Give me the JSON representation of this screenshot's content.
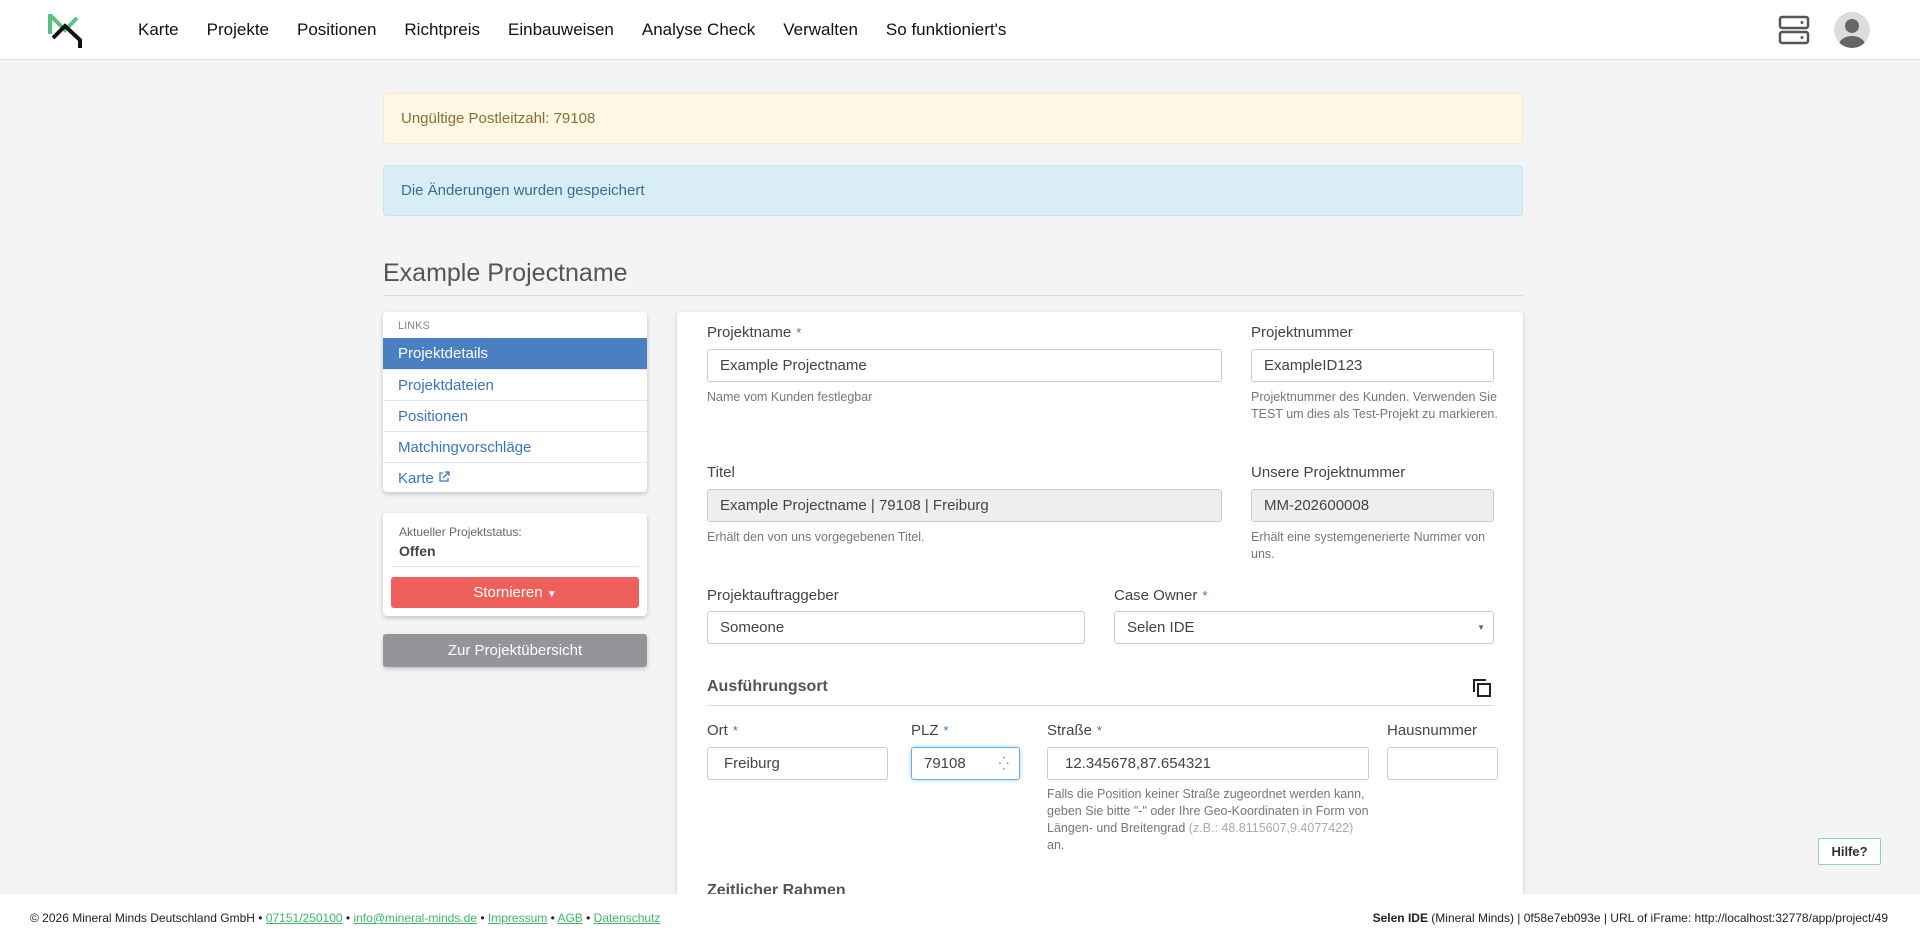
{
  "nav": {
    "items": [
      "Karte",
      "Projekte",
      "Positionen",
      "Richtpreis",
      "Einbauweisen",
      "Analyse Check",
      "Verwalten",
      "So funktioniert's"
    ]
  },
  "alerts": {
    "warning": "Ungültige Postleitzahl: 79108",
    "info": "Die Änderungen wurden gespeichert"
  },
  "page_title": "Example Projectname",
  "sidebar": {
    "header": "LINKS",
    "items": [
      "Projektdetails",
      "Projektdateien",
      "Positionen",
      "Matchingvorschläge",
      "Karte"
    ],
    "status_label": "Aktueller Projektstatus:",
    "status_value": "Offen",
    "storno_label": "Stornieren",
    "back_label": "Zur Projektübersicht"
  },
  "form": {
    "projektname": {
      "label": "Projektname",
      "value": "Example Projectname",
      "help": "Name vom Kunden festlegbar"
    },
    "projektnummer": {
      "label": "Projektnummer",
      "value": "ExampleID123",
      "help": "Projektnummer des Kunden. Verwenden Sie TEST um dies als Test-Projekt zu markieren."
    },
    "titel": {
      "label": "Titel",
      "value": "Example Projectname | 79108 | Freiburg",
      "help": "Erhält den von uns vorgegebenen Titel."
    },
    "unsere_nummer": {
      "label": "Unsere Projektnummer",
      "value": "MM-202600008",
      "help": "Erhält eine systemgenerierte Nummer von uns."
    },
    "auftraggeber": {
      "label": "Projektauftraggeber",
      "value": "Someone"
    },
    "case_owner": {
      "label": "Case Owner",
      "value": "Selen IDE"
    },
    "section_ort": "Ausführungsort",
    "ort": {
      "label": "Ort",
      "value": "Freiburg"
    },
    "plz": {
      "label": "PLZ",
      "value": "79108"
    },
    "strasse": {
      "label": "Straße",
      "value": "12.345678,87.654321",
      "help": "Falls die Position keiner Straße zugeordnet werden kann, geben Sie bitte \"-\" oder Ihre Geo-Koordinaten in Form von Längen- und Breitengrad ",
      "help_example": "(z.B.: 48.8115607,9.4077422)",
      "help_end": " an."
    },
    "hausnummer": {
      "label": "Hausnummer",
      "value": ""
    },
    "section_zeit": "Zeitlicher Rahmen",
    "required_mark": "*"
  },
  "footer": {
    "copyright": "© 2026 Mineral Minds Deutschland GmbH",
    "phone": "07151/250100",
    "email": "info@mineral-minds.de",
    "impressum": "Impressum",
    "agb": "AGB",
    "datenschutz": "Datenschutz",
    "sep": " • ",
    "user": "Selen IDE",
    "org": " (Mineral Minds) | 0f58e7eb093e | URL of iFrame: http://localhost:32778/app/project/49"
  },
  "help_button": "Hilfe?",
  "colors": {
    "accent": "#4a7fc1",
    "danger": "#ef5f5b",
    "brand_green": "#3cb76a"
  }
}
